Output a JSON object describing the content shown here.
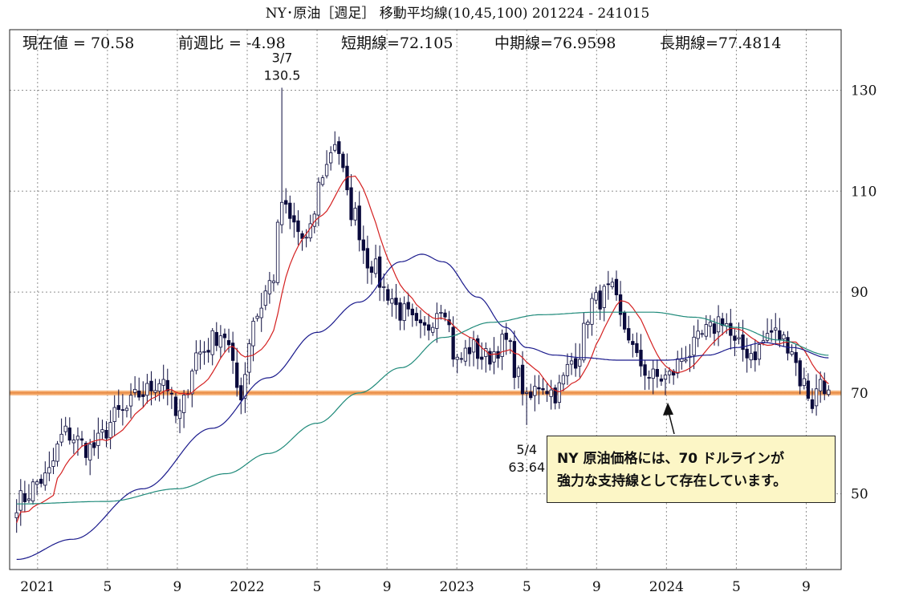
{
  "header": {
    "title": "NY･原油［週足］ 移動平均線(10,45,100)  201224 - 241015",
    "current": "現在値 = 70.58",
    "weekly_change": "前週比 = -4.98",
    "short_ma": "短期線=72.105",
    "mid_ma": "中期線=76.9598",
    "long_ma": "長期線=77.4814"
  },
  "callout": {
    "line1": "NY 原油価格には、70 ドルラインが",
    "line2": "強力な支持線として存在しています。"
  },
  "colors": {
    "up": "#ffffff",
    "down": "#0a0a3c",
    "short_ma": "#d42020",
    "mid_ma": "#1a1a8c",
    "long_ma": "#1f8a7a",
    "support": "#f4a460",
    "grid": "#909090"
  },
  "chart_data": {
    "type": "candlestick",
    "title": "NY･原油［週足］ 移動平均線(10,45,100)  201224 - 241015",
    "y_range": [
      35,
      142
    ],
    "y_ticks": [
      50,
      70,
      90,
      110,
      130
    ],
    "x_range": [
      -0.4,
      11.5
    ],
    "x_ticks": [
      {
        "label": "2021",
        "t": 0.0
      },
      {
        "label": "5",
        "t": 1.0
      },
      {
        "label": "9",
        "t": 2.0
      },
      {
        "label": "2022",
        "t": 3.0
      },
      {
        "label": "5",
        "t": 4.0
      },
      {
        "label": "9",
        "t": 5.0
      },
      {
        "label": "2023",
        "t": 6.0
      },
      {
        "label": "5",
        "t": 7.0
      },
      {
        "label": "9",
        "t": 8.0
      },
      {
        "label": "2024",
        "t": 9.0
      },
      {
        "label": "5",
        "t": 10.0
      },
      {
        "label": "9",
        "t": 11.0
      }
    ],
    "support_level": 70,
    "annotations": [
      {
        "label_date": "3/7",
        "label_value": "130.5",
        "t": 3.5,
        "value": 130.5,
        "position": "above"
      },
      {
        "label_date": "5/4",
        "label_value": "63.64",
        "t": 7.0,
        "value": 63.64,
        "position": "below"
      }
    ],
    "close_anchors": [
      [
        -0.3,
        48.5
      ],
      [
        0.1,
        53
      ],
      [
        0.4,
        62
      ],
      [
        0.75,
        59
      ],
      [
        1.2,
        66
      ],
      [
        1.5,
        70
      ],
      [
        1.8,
        73
      ],
      [
        2.0,
        65
      ],
      [
        2.3,
        78
      ],
      [
        2.65,
        82
      ],
      [
        2.9,
        70
      ],
      [
        3.1,
        85
      ],
      [
        3.35,
        92
      ],
      [
        3.5,
        108
      ],
      [
        3.6,
        104
      ],
      [
        3.85,
        100
      ],
      [
        4.1,
        114
      ],
      [
        4.25,
        120
      ],
      [
        4.5,
        106
      ],
      [
        4.75,
        96
      ],
      [
        5.0,
        90
      ],
      [
        5.2,
        86
      ],
      [
        5.5,
        82
      ],
      [
        5.8,
        88
      ],
      [
        6.0,
        76
      ],
      [
        6.2,
        79
      ],
      [
        6.4,
        77
      ],
      [
        6.7,
        80
      ],
      [
        6.9,
        73
      ],
      [
        7.0,
        68
      ],
      [
        7.2,
        72
      ],
      [
        7.4,
        70
      ],
      [
        7.7,
        77
      ],
      [
        7.95,
        88
      ],
      [
        8.2,
        90
      ],
      [
        8.4,
        83
      ],
      [
        8.6,
        76
      ],
      [
        8.8,
        73
      ],
      [
        9.0,
        73
      ],
      [
        9.3,
        78
      ],
      [
        9.6,
        82
      ],
      [
        9.8,
        85
      ],
      [
        10.0,
        79
      ],
      [
        10.25,
        78
      ],
      [
        10.5,
        82
      ],
      [
        10.75,
        80
      ],
      [
        10.95,
        72
      ],
      [
        11.1,
        68
      ],
      [
        11.2,
        73
      ],
      [
        11.32,
        70.58
      ]
    ],
    "mid_ma_anchors": [
      [
        -0.3,
        37
      ],
      [
        0.5,
        41
      ],
      [
        1.5,
        51
      ],
      [
        2.5,
        63
      ],
      [
        3.3,
        73
      ],
      [
        4.0,
        82
      ],
      [
        4.6,
        88
      ],
      [
        5.2,
        96
      ],
      [
        5.5,
        97.5
      ],
      [
        5.8,
        96
      ],
      [
        6.3,
        89
      ],
      [
        6.7,
        83
      ],
      [
        7.0,
        79
      ],
      [
        7.4,
        77.5
      ],
      [
        7.8,
        77
      ],
      [
        8.3,
        76.5
      ],
      [
        9.0,
        76.5
      ],
      [
        9.6,
        77.5
      ],
      [
        10.0,
        79
      ],
      [
        10.4,
        80
      ],
      [
        10.8,
        79
      ],
      [
        11.32,
        76.96
      ]
    ],
    "long_ma_anchors": [
      [
        -0.3,
        48
      ],
      [
        1.0,
        48.5
      ],
      [
        2.0,
        51
      ],
      [
        2.7,
        54
      ],
      [
        3.3,
        58
      ],
      [
        4.0,
        64
      ],
      [
        4.6,
        70
      ],
      [
        5.2,
        75
      ],
      [
        5.8,
        81
      ],
      [
        6.5,
        84
      ],
      [
        7.2,
        85.5
      ],
      [
        8.0,
        86
      ],
      [
        8.8,
        86
      ],
      [
        9.4,
        85
      ],
      [
        10.0,
        83
      ],
      [
        10.6,
        80.5
      ],
      [
        11.32,
        77.48
      ]
    ],
    "weeks": 200,
    "short_ma_period": 10
  }
}
